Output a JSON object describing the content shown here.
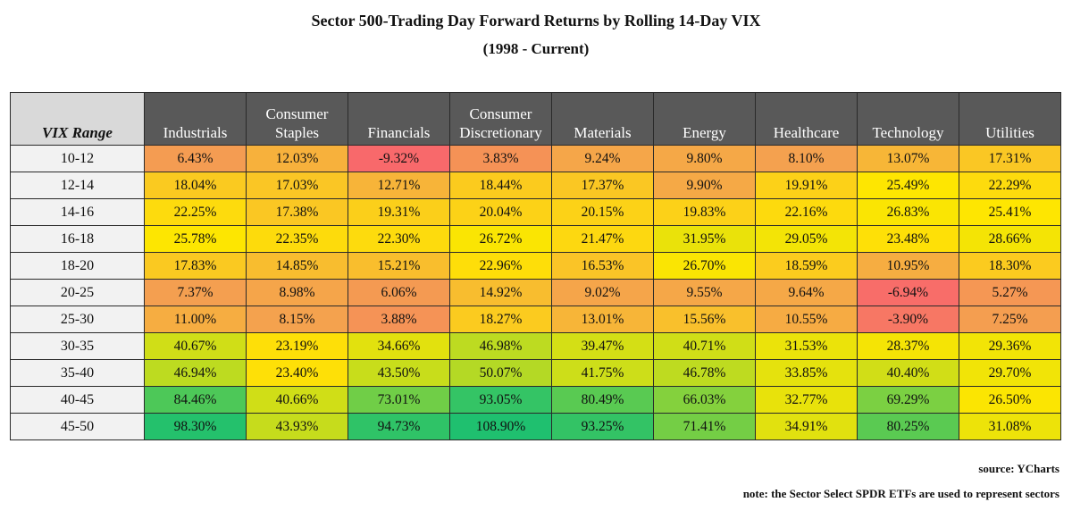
{
  "chart_data": {
    "type": "table",
    "title": "Sector 500-Trading Day Forward Returns by Rolling 14-Day VIX",
    "subtitle": "(1998 - Current)",
    "row_header": "VIX Range",
    "columns": [
      "Industrials",
      "Consumer Staples",
      "Financials",
      "Consumer Discretionary",
      "Materials",
      "Energy",
      "Healthcare",
      "Technology",
      "Utilities"
    ],
    "rows": [
      {
        "label": "10-12",
        "values": [
          "6.43%",
          "12.03%",
          "-9.32%",
          "3.83%",
          "9.24%",
          "9.80%",
          "8.10%",
          "13.07%",
          "17.31%"
        ]
      },
      {
        "label": "12-14",
        "values": [
          "18.04%",
          "17.03%",
          "12.71%",
          "18.44%",
          "17.37%",
          "9.90%",
          "19.91%",
          "25.49%",
          "22.29%"
        ]
      },
      {
        "label": "14-16",
        "values": [
          "22.25%",
          "17.38%",
          "19.31%",
          "20.04%",
          "20.15%",
          "19.83%",
          "22.16%",
          "26.83%",
          "25.41%"
        ]
      },
      {
        "label": "16-18",
        "values": [
          "25.78%",
          "22.35%",
          "22.30%",
          "26.72%",
          "21.47%",
          "31.95%",
          "29.05%",
          "23.48%",
          "28.66%"
        ]
      },
      {
        "label": "18-20",
        "values": [
          "17.83%",
          "14.85%",
          "15.21%",
          "22.96%",
          "16.53%",
          "26.70%",
          "18.59%",
          "10.95%",
          "18.30%"
        ]
      },
      {
        "label": "20-25",
        "values": [
          "7.37%",
          "8.98%",
          "6.06%",
          "14.92%",
          "9.02%",
          "9.55%",
          "9.64%",
          "-6.94%",
          "5.27%"
        ]
      },
      {
        "label": "25-30",
        "values": [
          "11.00%",
          "8.15%",
          "3.88%",
          "18.27%",
          "13.01%",
          "15.56%",
          "10.55%",
          "-3.90%",
          "7.25%"
        ]
      },
      {
        "label": "30-35",
        "values": [
          "40.67%",
          "23.19%",
          "34.66%",
          "46.98%",
          "39.47%",
          "40.71%",
          "31.53%",
          "28.37%",
          "29.36%"
        ]
      },
      {
        "label": "35-40",
        "values": [
          "46.94%",
          "23.40%",
          "43.50%",
          "50.07%",
          "41.75%",
          "46.78%",
          "33.85%",
          "40.40%",
          "29.70%"
        ]
      },
      {
        "label": "40-45",
        "values": [
          "84.46%",
          "40.66%",
          "73.01%",
          "93.05%",
          "80.49%",
          "66.03%",
          "32.77%",
          "69.29%",
          "26.50%"
        ]
      },
      {
        "label": "45-50",
        "values": [
          "98.30%",
          "43.93%",
          "94.73%",
          "108.90%",
          "93.25%",
          "71.41%",
          "34.91%",
          "80.25%",
          "31.08%"
        ]
      }
    ],
    "colors": {
      "header_bg": "#595959",
      "header_text": "#ffffff",
      "corner_bg": "#d9d9d9",
      "row_label_bg": "#f2f2f2",
      "scale": {
        "red": "#f8696b",
        "orange": "#f4a14f",
        "yellow": "#ffe600",
        "green": "#1fc06f"
      }
    }
  },
  "footer": {
    "source": "source: YCharts",
    "note": "note: the Sector Select SPDR ETFs are used to represent sectors"
  }
}
